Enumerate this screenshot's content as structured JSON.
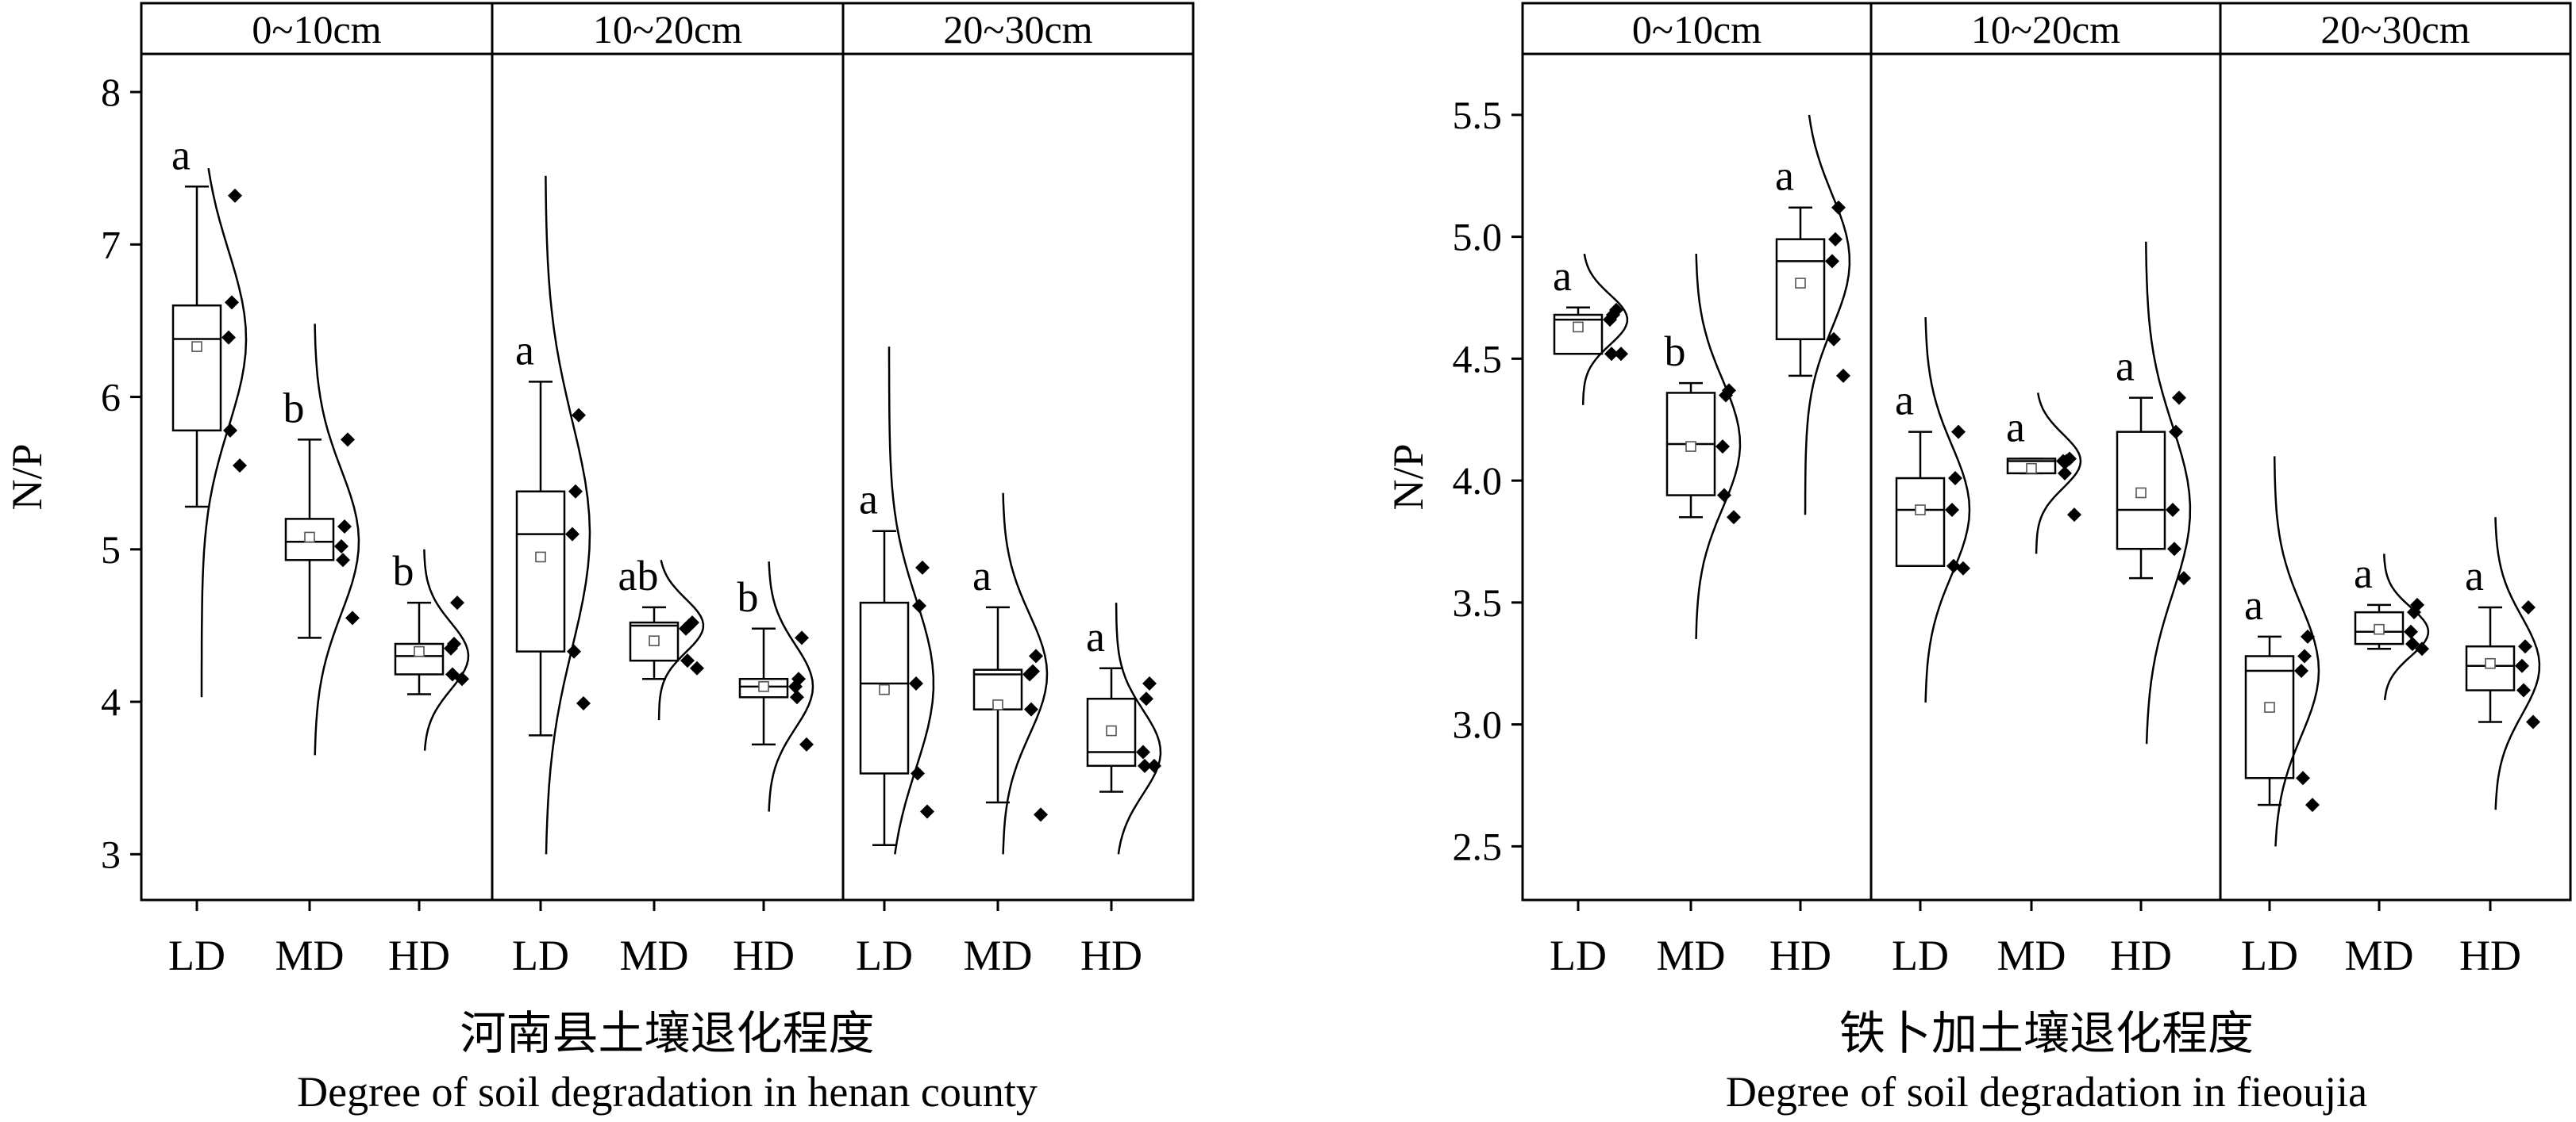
{
  "chart_data": [
    {
      "type": "box",
      "ylabel": "N/P",
      "xlabel_cn": "河南县土壤退化程度",
      "xlabel_en": "Degree of soil degradation in henan county",
      "ylim": [
        2.7,
        8.25
      ],
      "yticks": [
        "3",
        "4",
        "5",
        "6",
        "7",
        "8"
      ],
      "facets": [
        {
          "label": "0~10cm",
          "groups": [
            {
              "label": "LD",
              "sig": "a",
              "whisker_low": 5.28,
              "q1": 5.78,
              "median": 6.38,
              "q3": 6.6,
              "whisker_high": 7.38,
              "mean": 6.33,
              "points": [
                7.32,
                6.62,
                6.39,
                5.78,
                5.55
              ],
              "density_low": 4.03,
              "density_high": 7.5
            },
            {
              "label": "MD",
              "sig": "b",
              "whisker_low": 4.42,
              "q1": 4.93,
              "median": 5.05,
              "q3": 5.2,
              "whisker_high": 5.72,
              "mean": 5.08,
              "points": [
                5.72,
                5.15,
                5.02,
                4.93,
                4.55
              ],
              "density_low": 3.65,
              "density_high": 6.48
            },
            {
              "label": "HD",
              "sig": "b",
              "whisker_low": 4.05,
              "q1": 4.18,
              "median": 4.3,
              "q3": 4.38,
              "whisker_high": 4.65,
              "mean": 4.33,
              "points": [
                4.65,
                4.38,
                4.35,
                4.18,
                4.15
              ],
              "density_low": 3.68,
              "density_high": 5.0
            }
          ]
        },
        {
          "label": "10~20cm",
          "groups": [
            {
              "label": "LD",
              "sig": "a",
              "whisker_low": 3.78,
              "q1": 4.33,
              "median": 5.1,
              "q3": 5.38,
              "whisker_high": 6.1,
              "mean": 4.95,
              "points": [
                5.88,
                5.38,
                5.1,
                4.33,
                3.99
              ],
              "density_low": 3.0,
              "density_high": 7.45
            },
            {
              "label": "MD",
              "sig": "ab",
              "whisker_low": 4.15,
              "q1": 4.27,
              "median": 4.5,
              "q3": 4.52,
              "whisker_high": 4.62,
              "mean": 4.4,
              "points": [
                4.52,
                4.5,
                4.48,
                4.27,
                4.22
              ],
              "density_low": 3.88,
              "density_high": 4.93
            },
            {
              "label": "HD",
              "sig": "b",
              "whisker_low": 3.72,
              "q1": 4.03,
              "median": 4.1,
              "q3": 4.15,
              "whisker_high": 4.48,
              "mean": 4.1,
              "points": [
                4.42,
                4.15,
                4.1,
                4.03,
                3.72
              ],
              "density_low": 3.28,
              "density_high": 4.92
            }
          ]
        },
        {
          "label": "20~30cm",
          "groups": [
            {
              "label": "LD",
              "sig": "a",
              "whisker_low": 3.06,
              "q1": 3.53,
              "median": 4.12,
              "q3": 4.65,
              "whisker_high": 5.12,
              "mean": 4.08,
              "points": [
                4.88,
                4.63,
                4.12,
                3.53,
                3.28
              ],
              "density_low": 3.0,
              "density_high": 6.33
            },
            {
              "label": "MD",
              "sig": "a",
              "whisker_low": 3.34,
              "q1": 3.95,
              "median": 4.18,
              "q3": 4.21,
              "whisker_high": 4.62,
              "mean": 3.98,
              "points": [
                4.3,
                4.2,
                4.18,
                3.95,
                3.26
              ],
              "density_low": 3.0,
              "density_high": 5.37
            },
            {
              "label": "HD",
              "sig": "a",
              "whisker_low": 3.41,
              "q1": 3.58,
              "median": 3.67,
              "q3": 4.02,
              "whisker_high": 4.22,
              "mean": 3.81,
              "points": [
                4.12,
                4.02,
                3.67,
                3.58,
                3.58
              ],
              "density_low": 3.0,
              "density_high": 4.65
            }
          ]
        }
      ]
    },
    {
      "type": "box",
      "ylabel": "N/P",
      "xlabel_cn": "铁卜加土壤退化程度",
      "xlabel_en": "Degree of soil degradation in fieoujia",
      "ylim": [
        2.28,
        5.75
      ],
      "yticks": [
        "2.5",
        "3.0",
        "3.5",
        "4.0",
        "4.5",
        "5.0",
        "5.5"
      ],
      "facets": [
        {
          "label": "0~10cm",
          "groups": [
            {
              "label": "LD",
              "sig": "a",
              "whisker_low": 4.52,
              "q1": 4.52,
              "median": 4.66,
              "q3": 4.68,
              "whisker_high": 4.71,
              "mean": 4.63,
              "points": [
                4.7,
                4.68,
                4.66,
                4.52,
                4.52
              ],
              "density_low": 4.31,
              "density_high": 4.93
            },
            {
              "label": "MD",
              "sig": "b",
              "whisker_low": 3.85,
              "q1": 3.94,
              "median": 4.15,
              "q3": 4.36,
              "whisker_high": 4.4,
              "mean": 4.14,
              "points": [
                4.37,
                4.35,
                4.14,
                3.94,
                3.85
              ],
              "density_low": 3.35,
              "density_high": 4.93
            },
            {
              "label": "HD",
              "sig": "a",
              "whisker_low": 4.43,
              "q1": 4.58,
              "median": 4.9,
              "q3": 4.99,
              "whisker_high": 5.12,
              "mean": 4.81,
              "points": [
                5.12,
                4.99,
                4.9,
                4.58,
                4.43
              ],
              "density_low": 3.86,
              "density_high": 5.5
            }
          ]
        },
        {
          "label": "10~20cm",
          "groups": [
            {
              "label": "LD",
              "sig": "a",
              "whisker_low": 3.65,
              "q1": 3.65,
              "median": 3.88,
              "q3": 4.01,
              "whisker_high": 4.2,
              "mean": 3.88,
              "points": [
                4.2,
                4.01,
                3.88,
                3.65,
                3.64
              ],
              "density_low": 3.09,
              "density_high": 4.67
            },
            {
              "label": "MD",
              "sig": "a",
              "whisker_low": 4.03,
              "q1": 4.03,
              "median": 4.08,
              "q3": 4.09,
              "whisker_high": 4.09,
              "mean": 4.05,
              "points": [
                4.09,
                4.08,
                4.08,
                4.03,
                3.86
              ],
              "density_low": 3.7,
              "density_high": 4.36
            },
            {
              "label": "HD",
              "sig": "a",
              "whisker_low": 3.6,
              "q1": 3.72,
              "median": 3.88,
              "q3": 4.2,
              "whisker_high": 4.34,
              "mean": 3.95,
              "points": [
                4.34,
                4.2,
                3.88,
                3.72,
                3.6
              ],
              "density_low": 2.92,
              "density_high": 4.98
            }
          ]
        },
        {
          "label": "20~30cm",
          "groups": [
            {
              "label": "LD",
              "sig": "a",
              "whisker_low": 2.67,
              "q1": 2.78,
              "median": 3.22,
              "q3": 3.28,
              "whisker_high": 3.36,
              "mean": 3.07,
              "points": [
                3.36,
                3.28,
                3.22,
                2.78,
                2.67
              ],
              "density_low": 2.5,
              "density_high": 4.1
            },
            {
              "label": "MD",
              "sig": "a",
              "whisker_low": 3.31,
              "q1": 3.33,
              "median": 3.38,
              "q3": 3.46,
              "whisker_high": 3.49,
              "mean": 3.39,
              "points": [
                3.49,
                3.46,
                3.38,
                3.33,
                3.31
              ],
              "density_low": 3.1,
              "density_high": 3.7
            },
            {
              "label": "HD",
              "sig": "a",
              "whisker_low": 3.01,
              "q1": 3.14,
              "median": 3.24,
              "q3": 3.32,
              "whisker_high": 3.48,
              "mean": 3.25,
              "points": [
                3.48,
                3.32,
                3.24,
                3.14,
                3.01
              ],
              "density_low": 2.65,
              "density_high": 3.85
            }
          ]
        }
      ]
    }
  ]
}
